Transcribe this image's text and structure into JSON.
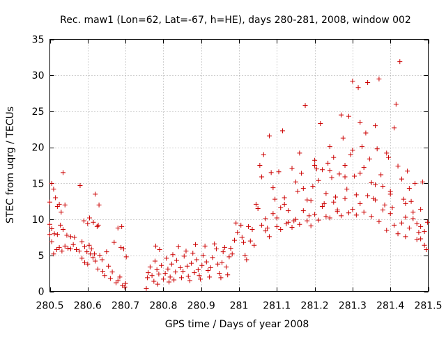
{
  "chart_data": {
    "type": "scatter",
    "title": "Rec. maw1 (Lon=62, Lat=-67, h=HE), days 280-281, 2008, window 002",
    "xlabel": "GPS time / Days of year 2008",
    "ylabel": "STEC from uqrg / TECUs",
    "xlim": [
      280.5,
      281.5
    ],
    "ylim": [
      0,
      35
    ],
    "xticks": [
      280.5,
      280.6,
      280.7,
      280.8,
      280.9,
      281,
      281.1,
      281.2,
      281.3,
      281.4,
      281.5
    ],
    "xtick_labels": [
      "280.5",
      "280.6",
      "280.7",
      "280.8",
      "280.9",
      "281",
      "281.1",
      "281.2",
      "281.3",
      "281.4",
      "281.5"
    ],
    "yticks": [
      0,
      5,
      10,
      15,
      20,
      25,
      30,
      35
    ],
    "ytick_labels": [
      "0",
      "5",
      "10",
      "15",
      "20",
      "25",
      "30",
      "35"
    ],
    "grid": true,
    "marker": "plus",
    "color": "#cc0000",
    "series": [
      {
        "name": "STEC",
        "points": [
          [
            280.5,
            12.4
          ],
          [
            280.505,
            15.0
          ],
          [
            280.51,
            14.2
          ],
          [
            280.515,
            13.0
          ],
          [
            280.52,
            11.8
          ],
          [
            280.525,
            12.1
          ],
          [
            280.53,
            11.0
          ],
          [
            280.535,
            16.5
          ],
          [
            280.54,
            12.0
          ],
          [
            280.5,
            9.3
          ],
          [
            280.505,
            8.7
          ],
          [
            280.512,
            8.0
          ],
          [
            280.52,
            7.9
          ],
          [
            280.528,
            9.2
          ],
          [
            280.535,
            8.6
          ],
          [
            280.545,
            7.8
          ],
          [
            280.555,
            7.6
          ],
          [
            280.565,
            7.5
          ],
          [
            280.5,
            7.9
          ],
          [
            280.505,
            6.9
          ],
          [
            280.51,
            5.2
          ],
          [
            280.518,
            5.8
          ],
          [
            280.525,
            6.1
          ],
          [
            280.532,
            5.6
          ],
          [
            280.54,
            6.3
          ],
          [
            280.548,
            6.0
          ],
          [
            280.555,
            5.9
          ],
          [
            280.562,
            6.5
          ],
          [
            280.57,
            5.8
          ],
          [
            280.578,
            5.6
          ],
          [
            280.585,
            6.9
          ],
          [
            280.592,
            6.2
          ],
          [
            280.598,
            5.5
          ],
          [
            280.604,
            6.4
          ],
          [
            280.61,
            5.9
          ],
          [
            280.618,
            5.2
          ],
          [
            280.58,
            14.7
          ],
          [
            280.59,
            9.8
          ],
          [
            280.6,
            9.4
          ],
          [
            280.605,
            10.2
          ],
          [
            280.615,
            9.6
          ],
          [
            280.62,
            13.5
          ],
          [
            280.625,
            9.0
          ],
          [
            280.63,
            12.0
          ],
          [
            280.628,
            9.2
          ],
          [
            280.585,
            4.6
          ],
          [
            280.592,
            4.0
          ],
          [
            280.6,
            3.8
          ],
          [
            280.607,
            5.2
          ],
          [
            280.614,
            4.7
          ],
          [
            280.62,
            4.2
          ],
          [
            280.627,
            3.1
          ],
          [
            280.632,
            5.0
          ],
          [
            280.638,
            4.4
          ],
          [
            280.64,
            2.8
          ],
          [
            280.645,
            2.2
          ],
          [
            280.65,
            5.5
          ],
          [
            280.655,
            3.5
          ],
          [
            280.66,
            1.8
          ],
          [
            280.665,
            2.7
          ],
          [
            280.67,
            6.8
          ],
          [
            280.675,
            1.2
          ],
          [
            280.68,
            1.5
          ],
          [
            280.68,
            8.8
          ],
          [
            280.688,
            6.1
          ],
          [
            280.69,
            9.0
          ],
          [
            280.695,
            5.9
          ],
          [
            280.698,
            0.6
          ],
          [
            280.7,
            1.1
          ],
          [
            280.702,
            4.8
          ],
          [
            280.692,
            0.8
          ],
          [
            280.685,
            2.0
          ],
          [
            280.755,
            0.4
          ],
          [
            280.758,
            1.9
          ],
          [
            280.76,
            2.6
          ],
          [
            280.765,
            3.4
          ],
          [
            280.77,
            2.2
          ],
          [
            280.775,
            1.4
          ],
          [
            280.778,
            4.2
          ],
          [
            280.78,
            6.3
          ],
          [
            280.783,
            3.0
          ],
          [
            280.785,
            1.0
          ],
          [
            280.788,
            2.4
          ],
          [
            280.79,
            5.8
          ],
          [
            280.795,
            3.6
          ],
          [
            280.8,
            1.7
          ],
          [
            280.805,
            2.5
          ],
          [
            280.808,
            4.6
          ],
          [
            280.812,
            3.1
          ],
          [
            280.815,
            1.3
          ],
          [
            280.818,
            2.0
          ],
          [
            280.822,
            3.8
          ],
          [
            280.825,
            5.1
          ],
          [
            280.828,
            1.6
          ],
          [
            280.832,
            2.7
          ],
          [
            280.835,
            4.3
          ],
          [
            280.84,
            6.2
          ],
          [
            280.845,
            3.3
          ],
          [
            280.848,
            1.9
          ],
          [
            280.852,
            2.8
          ],
          [
            280.855,
            4.9
          ],
          [
            280.86,
            5.6
          ],
          [
            280.863,
            3.5
          ],
          [
            280.866,
            2.1
          ],
          [
            280.87,
            1.5
          ],
          [
            280.874,
            3.9
          ],
          [
            280.878,
            5.3
          ],
          [
            280.882,
            2.6
          ],
          [
            280.885,
            6.5
          ],
          [
            280.888,
            4.4
          ],
          [
            280.892,
            3.0
          ],
          [
            280.895,
            2.2
          ],
          [
            280.898,
            1.7
          ],
          [
            280.902,
            3.6
          ],
          [
            280.905,
            5.0
          ],
          [
            280.91,
            6.3
          ],
          [
            280.914,
            4.1
          ],
          [
            280.918,
            2.9
          ],
          [
            280.922,
            2.0
          ],
          [
            280.925,
            3.3
          ],
          [
            280.93,
            4.7
          ],
          [
            280.935,
            6.6
          ],
          [
            280.94,
            5.9
          ],
          [
            280.944,
            3.8
          ],
          [
            280.948,
            2.5
          ],
          [
            280.952,
            1.9
          ],
          [
            280.955,
            4.0
          ],
          [
            280.958,
            5.5
          ],
          [
            280.962,
            6.1
          ],
          [
            280.966,
            3.4
          ],
          [
            280.97,
            2.3
          ],
          [
            280.974,
            4.8
          ],
          [
            280.978,
            6.0
          ],
          [
            280.982,
            5.2
          ],
          [
            280.988,
            7.1
          ],
          [
            280.992,
            9.5
          ],
          [
            280.996,
            8.2
          ],
          [
            281.005,
            9.2
          ],
          [
            281.008,
            7.5
          ],
          [
            281.012,
            6.8
          ],
          [
            281.016,
            5.0
          ],
          [
            281.02,
            4.4
          ],
          [
            281.025,
            9.0
          ],
          [
            281.03,
            7.0
          ],
          [
            281.035,
            8.6
          ],
          [
            281.04,
            6.4
          ],
          [
            281.045,
            12.1
          ],
          [
            281.05,
            11.5
          ],
          [
            281.055,
            17.5
          ],
          [
            281.06,
            15.9
          ],
          [
            281.065,
            19.0
          ],
          [
            281.07,
            10.1
          ],
          [
            281.075,
            8.8
          ],
          [
            281.08,
            21.6
          ],
          [
            281.085,
            16.5
          ],
          [
            281.09,
            14.4
          ],
          [
            281.095,
            12.8
          ],
          [
            281.1,
            10.2
          ],
          [
            281.105,
            16.6
          ],
          [
            281.11,
            11.6
          ],
          [
            281.115,
            22.3
          ],
          [
            281.12,
            13.0
          ],
          [
            281.125,
            9.4
          ],
          [
            281.13,
            11.2
          ],
          [
            281.14,
            17.1
          ],
          [
            281.145,
            9.8
          ],
          [
            281.15,
            15.2
          ],
          [
            281.155,
            13.9
          ],
          [
            281.16,
            19.2
          ],
          [
            281.165,
            16.4
          ],
          [
            281.17,
            14.3
          ],
          [
            281.175,
            25.8
          ],
          [
            281.18,
            12.7
          ],
          [
            281.185,
            10.5
          ],
          [
            281.19,
            9.1
          ],
          [
            281.195,
            14.6
          ],
          [
            281.2,
            18.2
          ],
          [
            281.205,
            17.0
          ],
          [
            281.21,
            15.4
          ],
          [
            281.215,
            23.3
          ],
          [
            281.22,
            16.9
          ],
          [
            281.225,
            12.2
          ],
          [
            281.23,
            10.4
          ],
          [
            281.235,
            17.8
          ],
          [
            281.24,
            20.1
          ],
          [
            281.245,
            15.8
          ],
          [
            281.25,
            18.6
          ],
          [
            281.255,
            13.1
          ],
          [
            281.26,
            11.3
          ],
          [
            281.265,
            16.3
          ],
          [
            281.27,
            24.5
          ],
          [
            281.275,
            21.3
          ],
          [
            281.28,
            17.5
          ],
          [
            281.285,
            14.2
          ],
          [
            281.29,
            24.3
          ],
          [
            281.295,
            19.0
          ],
          [
            281.3,
            29.2
          ],
          [
            281.305,
            16.0
          ],
          [
            281.31,
            13.4
          ],
          [
            281.315,
            28.3
          ],
          [
            281.32,
            23.5
          ],
          [
            281.325,
            20.1
          ],
          [
            281.33,
            17.2
          ],
          [
            281.335,
            22.0
          ],
          [
            281.34,
            29.0
          ],
          [
            281.345,
            18.4
          ],
          [
            281.35,
            15.1
          ],
          [
            281.355,
            12.9
          ],
          [
            281.36,
            23.0
          ],
          [
            281.365,
            19.8
          ],
          [
            281.37,
            29.5
          ],
          [
            281.375,
            16.2
          ],
          [
            281.38,
            14.6
          ],
          [
            281.385,
            12.0
          ],
          [
            281.39,
            19.2
          ],
          [
            281.395,
            18.6
          ],
          [
            281.4,
            13.5
          ],
          [
            281.405,
            11.6
          ],
          [
            281.41,
            22.7
          ],
          [
            281.415,
            26.0
          ],
          [
            281.42,
            17.4
          ],
          [
            281.425,
            31.9
          ],
          [
            281.43,
            15.6
          ],
          [
            281.435,
            12.8
          ],
          [
            281.44,
            10.3
          ],
          [
            281.445,
            16.7
          ],
          [
            281.45,
            14.3
          ],
          [
            281.455,
            12.5
          ],
          [
            281.46,
            11.0
          ],
          [
            281.465,
            15.0
          ],
          [
            281.47,
            9.4
          ],
          [
            281.475,
            8.2
          ],
          [
            281.48,
            7.3
          ],
          [
            281.485,
            15.2
          ],
          [
            281.49,
            6.4
          ],
          [
            281.495,
            5.8
          ],
          [
            281.06,
            9.2
          ],
          [
            281.07,
            8.4
          ],
          [
            281.08,
            7.6
          ],
          [
            281.09,
            10.8
          ],
          [
            281.1,
            9.0
          ],
          [
            281.11,
            8.6
          ],
          [
            281.12,
            12.1
          ],
          [
            281.13,
            9.6
          ],
          [
            281.14,
            8.9
          ],
          [
            281.15,
            10.0
          ],
          [
            281.16,
            9.3
          ],
          [
            281.17,
            11.2
          ],
          [
            281.18,
            9.8
          ],
          [
            281.19,
            12.6
          ],
          [
            281.2,
            10.7
          ],
          [
            281.21,
            9.9
          ],
          [
            281.22,
            11.8
          ],
          [
            281.23,
            13.6
          ],
          [
            281.24,
            10.2
          ],
          [
            281.25,
            12.4
          ],
          [
            281.26,
            11.1
          ],
          [
            281.27,
            10.5
          ],
          [
            281.28,
            12.9
          ],
          [
            281.29,
            10.9
          ],
          [
            281.3,
            11.4
          ],
          [
            281.31,
            10.6
          ],
          [
            281.32,
            12.2
          ],
          [
            281.33,
            11.0
          ],
          [
            281.34,
            13.3
          ],
          [
            281.35,
            10.4
          ],
          [
            281.36,
            12.7
          ],
          [
            281.37,
            9.7
          ],
          [
            281.38,
            11.3
          ],
          [
            281.39,
            8.5
          ],
          [
            281.4,
            10.8
          ],
          [
            281.41,
            9.2
          ],
          [
            281.42,
            8.0
          ],
          [
            281.43,
            9.5
          ],
          [
            281.44,
            7.6
          ],
          [
            281.45,
            8.8
          ],
          [
            281.46,
            10.1
          ],
          [
            281.47,
            7.2
          ],
          [
            281.48,
            9.0
          ],
          [
            281.49,
            8.3
          ],
          [
            281.498,
            9.6
          ],
          [
            281.2,
            17.5
          ],
          [
            281.24,
            16.8
          ],
          [
            281.28,
            15.9
          ],
          [
            281.32,
            16.4
          ],
          [
            281.36,
            14.8
          ],
          [
            281.4,
            13.9
          ],
          [
            281.44,
            12.2
          ],
          [
            281.48,
            11.4
          ],
          [
            281.3,
            19.6
          ]
        ]
      }
    ]
  }
}
